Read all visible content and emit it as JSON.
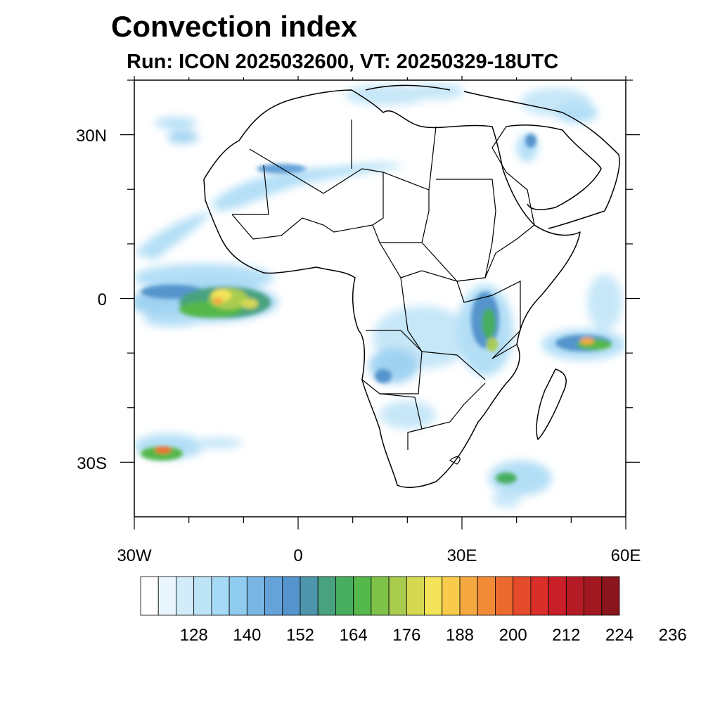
{
  "title": "Convection index",
  "subtitle": "Run: ICON 2025032600,  VT: 20250329-18UTC",
  "map": {
    "lon_range": [
      -30,
      60
    ],
    "lat_range": [
      -40,
      40
    ],
    "x_tick_labels": [
      "30W",
      "0",
      "30E",
      "60E"
    ],
    "y_tick_labels": [
      "30N",
      "0",
      "30S"
    ]
  },
  "colorbar": {
    "labels": [
      "128",
      "140",
      "152",
      "164",
      "176",
      "188",
      "200",
      "212",
      "224",
      "236"
    ],
    "colors": [
      "#ffffff",
      "#eaf6fd",
      "#d2ecfa",
      "#bde3f7",
      "#a6d9f5",
      "#8fcbef",
      "#7ab6e4",
      "#65a2d9",
      "#5594cc",
      "#4d95aa",
      "#49a27f",
      "#47ad5f",
      "#55b84a",
      "#7fc24a",
      "#a9cc4f",
      "#d6d852",
      "#f2e35a",
      "#f8cb4c",
      "#f6a840",
      "#f28b37",
      "#ed6a2f",
      "#e44b2a",
      "#d92e29",
      "#c91f28",
      "#b51b24",
      "#a11820",
      "#8b151c"
    ]
  }
}
